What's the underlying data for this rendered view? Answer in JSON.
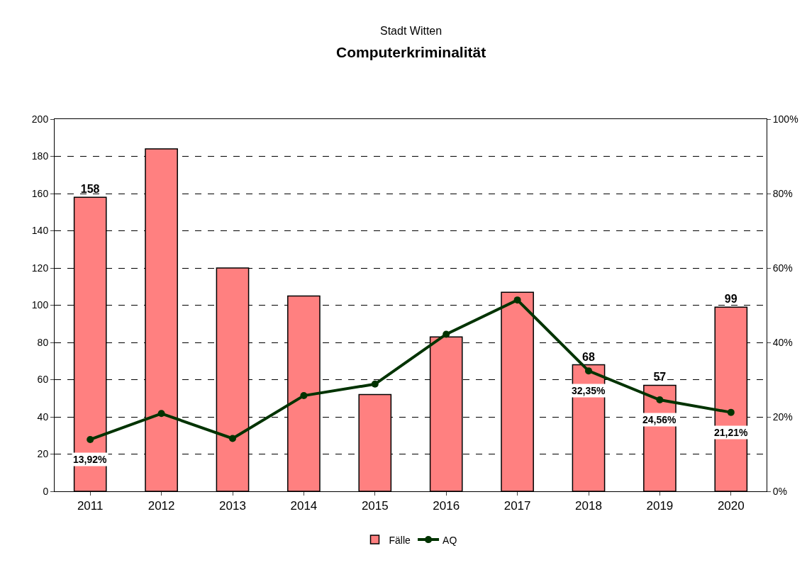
{
  "chart_data": {
    "type": "bar",
    "subtitle": "Stadt Witten",
    "title": "Computerkriminalität",
    "categories": [
      "2011",
      "2012",
      "2013",
      "2014",
      "2015",
      "2016",
      "2017",
      "2018",
      "2019",
      "2020"
    ],
    "series": [
      {
        "name": "Fälle",
        "color": "#ff8080",
        "values": [
          158,
          184,
          120,
          105,
          52,
          83,
          107,
          68,
          57,
          99
        ],
        "value_labels": [
          "158",
          null,
          null,
          null,
          null,
          null,
          null,
          "68",
          "57",
          "99"
        ]
      },
      {
        "name": "AQ",
        "type": "line",
        "axis": "y2",
        "color": "#003300",
        "marker": "circle",
        "line_style": "solid",
        "values": [
          13.92,
          20.9,
          14.2,
          25.7,
          28.8,
          42.2,
          51.4,
          32.35,
          24.56,
          21.21
        ],
        "value_labels": [
          "13,92%",
          null,
          null,
          null,
          null,
          null,
          null,
          "32,35%",
          "24,56%",
          "21,21%"
        ]
      }
    ],
    "ylim": [
      0,
      200
    ],
    "yticks": [
      0,
      20,
      40,
      60,
      80,
      100,
      120,
      140,
      160,
      180,
      200
    ],
    "y2lim": [
      0,
      100
    ],
    "y2ticks": [
      {
        "value": 0,
        "label": "0%"
      },
      {
        "value": 20,
        "label": "20%"
      },
      {
        "value": 40,
        "label": "40%"
      },
      {
        "value": 60,
        "label": "60%"
      },
      {
        "value": 80,
        "label": "80%"
      },
      {
        "value": 100,
        "label": "100%"
      }
    ],
    "grid": "y",
    "legend": "bottom"
  }
}
